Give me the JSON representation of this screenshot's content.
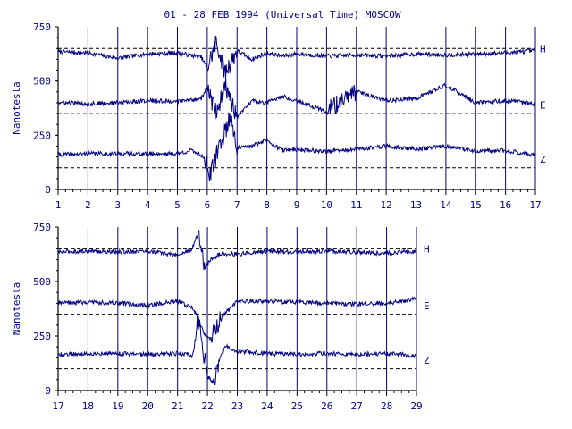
{
  "chart_data": [
    {
      "type": "line",
      "title": "01 - 28 FEB 1994 (Universal Time) MOSCOW",
      "ylabel": "Nanotesla",
      "xlabel": "",
      "ylim": [
        0,
        750
      ],
      "y_ticks": [
        "0",
        "250",
        "500",
        "750"
      ],
      "x_ticks": [
        "1",
        "2",
        "3",
        "4",
        "5",
        "6",
        "7",
        "8",
        "9",
        "10",
        "11",
        "12",
        "13",
        "14",
        "15",
        "16",
        "17"
      ],
      "xlim": [
        1,
        17
      ],
      "baselines": [
        {
          "name": "H",
          "value": 650
        },
        {
          "name": "E",
          "value": 350
        },
        {
          "name": "Z",
          "value": 100
        }
      ],
      "series": [
        {
          "name": "H",
          "x": [
            1,
            2,
            3,
            4,
            5,
            5.8,
            6,
            6.3,
            6.6,
            7,
            7.5,
            8,
            8.5,
            9,
            10,
            11,
            12,
            13,
            14,
            15,
            16,
            17
          ],
          "values": [
            635,
            630,
            605,
            625,
            630,
            610,
            560,
            680,
            540,
            640,
            600,
            630,
            615,
            625,
            615,
            620,
            615,
            625,
            620,
            625,
            630,
            640
          ]
        },
        {
          "name": "E",
          "x": [
            1,
            2,
            3,
            4,
            5,
            5.8,
            6,
            6.3,
            6.6,
            7,
            7.5,
            8,
            8.5,
            9,
            10,
            11,
            12,
            13,
            14,
            15,
            16,
            17
          ],
          "values": [
            400,
            395,
            400,
            410,
            405,
            420,
            470,
            350,
            480,
            330,
            410,
            400,
            430,
            410,
            360,
            450,
            410,
            420,
            480,
            400,
            410,
            395
          ]
        },
        {
          "name": "Z",
          "x": [
            1,
            2,
            3,
            4,
            5,
            5.5,
            5.9,
            6.1,
            6.4,
            6.8,
            7,
            7.5,
            8,
            8.5,
            9,
            10,
            11,
            12,
            13,
            14,
            15,
            16,
            17
          ],
          "values": [
            160,
            165,
            165,
            165,
            165,
            180,
            150,
            60,
            200,
            340,
            190,
            200,
            230,
            180,
            185,
            175,
            185,
            200,
            185,
            200,
            175,
            180,
            160
          ]
        }
      ]
    },
    {
      "type": "line",
      "title": "",
      "ylabel": "Nanotesla",
      "xlabel": "",
      "ylim": [
        0,
        750
      ],
      "y_ticks": [
        "0",
        "250",
        "500",
        "750"
      ],
      "x_ticks": [
        "17",
        "18",
        "19",
        "20",
        "21",
        "22",
        "23",
        "24",
        "25",
        "26",
        "27",
        "28",
        "29"
      ],
      "xlim": [
        17,
        29
      ],
      "baselines": [
        {
          "name": "H",
          "value": 650
        },
        {
          "name": "E",
          "value": 350
        },
        {
          "name": "Z",
          "value": 100
        }
      ],
      "series": [
        {
          "name": "H",
          "x": [
            17,
            18,
            19,
            20,
            21,
            21.5,
            21.7,
            21.9,
            22.1,
            22.5,
            23,
            24,
            25,
            26,
            27,
            28,
            29
          ],
          "values": [
            635,
            640,
            635,
            640,
            620,
            650,
            730,
            560,
            600,
            630,
            625,
            640,
            635,
            640,
            635,
            630,
            640
          ]
        },
        {
          "name": "E",
          "x": [
            17,
            18,
            19,
            20,
            20.5,
            21,
            21.5,
            21.7,
            21.9,
            22.1,
            22.5,
            23,
            24,
            25,
            26,
            27,
            28,
            29
          ],
          "values": [
            400,
            405,
            400,
            390,
            400,
            410,
            380,
            330,
            260,
            240,
            340,
            410,
            410,
            405,
            400,
            395,
            400,
            420
          ]
        },
        {
          "name": "Z",
          "x": [
            17,
            18,
            19,
            20,
            21,
            21.5,
            21.7,
            21.9,
            22.0,
            22.2,
            22.4,
            22.6,
            23,
            24,
            25,
            26,
            27,
            28,
            29
          ],
          "values": [
            165,
            170,
            170,
            165,
            170,
            160,
            320,
            150,
            60,
            40,
            140,
            210,
            180,
            170,
            165,
            170,
            165,
            170,
            160
          ]
        }
      ]
    }
  ],
  "colors": {
    "plot": "#000080",
    "axis": "#000000",
    "text": "#000080"
  }
}
